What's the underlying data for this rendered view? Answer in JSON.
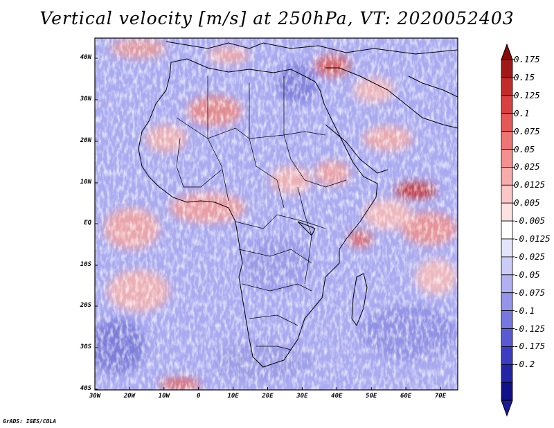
{
  "title": "Vertical velocity [m/s] at 250hPa, VT: 2020052403",
  "footer": "GrADS: IGES/COLA",
  "map": {
    "region": "Africa",
    "lat_labels": [
      "40N",
      "30N",
      "20N",
      "10N",
      "EQ",
      "10S",
      "20S",
      "30S",
      "40S"
    ],
    "lon_labels": [
      "30W",
      "20W",
      "10W",
      "0",
      "10E",
      "20E",
      "30E",
      "40E",
      "50E",
      "60E",
      "70E"
    ],
    "lat_range": [
      -40,
      45
    ],
    "lon_range": [
      -30,
      75
    ]
  },
  "colorbar": {
    "labels": [
      "0.175",
      "0.15",
      "0.125",
      "0.1",
      "0.075",
      "0.05",
      "0.025",
      "0.0125",
      "0.005",
      "-0.005",
      "-0.0125",
      "-0.025",
      "-0.05",
      "-0.075",
      "-0.1",
      "-0.125",
      "-0.175",
      "-0.2"
    ],
    "colors": [
      "#a01818",
      "#c32a2a",
      "#d94040",
      "#e65858",
      "#ef7474",
      "#f49090",
      "#f7abab",
      "#fac6c6",
      "#fde2e2",
      "#ffffff",
      "#e4e4fc",
      "#ccccf8",
      "#b0b0f2",
      "#9494ea",
      "#7777e0",
      "#5a5ad4",
      "#3d3dc3",
      "#2424a8",
      "#10108a"
    ],
    "top_arrow_color": "#8a0a0a",
    "bottom_arrow_color": "#1a1a9a"
  }
}
